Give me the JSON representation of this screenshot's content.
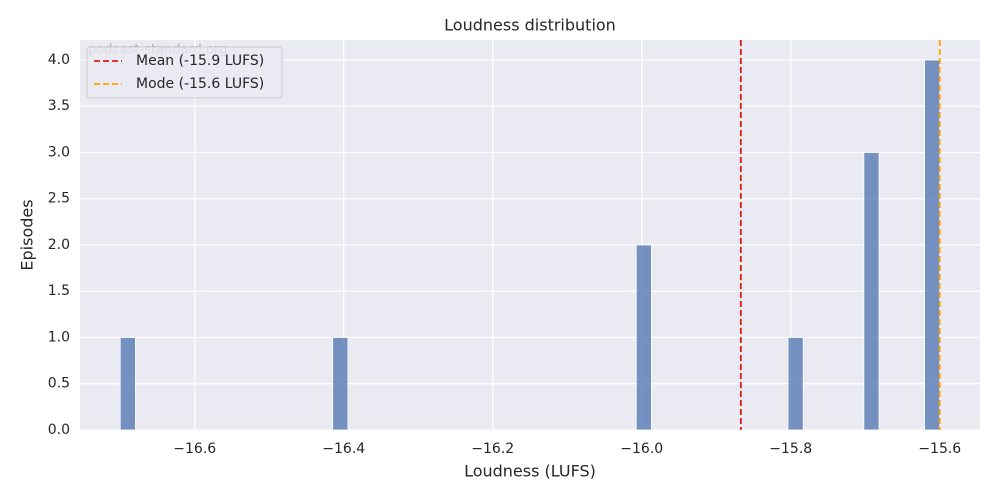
{
  "chart_data": {
    "type": "histogram",
    "title": "Loudness distribution",
    "xlabel": "Loudness (LUFS)",
    "ylabel": "Episodes",
    "watermark": "podcast-standard.org",
    "bins": [
      -16.7,
      -16.6796,
      -16.6593,
      -16.6389,
      -16.6185,
      -16.5981,
      -16.5778,
      -16.5574,
      -16.537,
      -16.5167,
      -16.4963,
      -16.4759,
      -16.4556,
      -16.4352,
      -16.4148,
      -16.3944,
      -16.3741,
      -16.3537,
      -16.3333,
      -16.313,
      -16.2926,
      -16.2722,
      -16.2519,
      -16.2315,
      -16.2111,
      -16.1907,
      -16.1704,
      -16.15,
      -16.1296,
      -16.1093,
      -16.0889,
      -16.0685,
      -16.0481,
      -16.0278,
      -16.0074,
      -15.987,
      -15.9667,
      -15.9463,
      -15.9259,
      -15.9056,
      -15.8852,
      -15.8648,
      -15.8444,
      -15.8241,
      -15.8037,
      -15.7833,
      -15.763,
      -15.7426,
      -15.7222,
      -15.7019,
      -15.6815,
      -15.6611,
      -15.6407,
      -15.6204,
      -15.6
    ],
    "values": [
      1,
      0,
      0,
      0,
      0,
      0,
      0,
      0,
      0,
      0,
      0,
      0,
      0,
      0,
      1,
      0,
      0,
      0,
      0,
      0,
      0,
      0,
      0,
      0,
      0,
      0,
      0,
      0,
      0,
      0,
      0,
      0,
      0,
      0,
      2,
      0,
      0,
      0,
      0,
      0,
      0,
      0,
      0,
      0,
      1,
      0,
      0,
      0,
      0,
      3,
      0,
      0,
      0,
      4
    ],
    "color": "#4c72b0",
    "vlines": [
      {
        "name": "Mean (-15.9 LUFS)",
        "value": -15.867,
        "color": "#e41a1c"
      },
      {
        "name": "Mode (-15.6 LUFS)",
        "value": -15.6,
        "color": "#ffa500"
      }
    ],
    "xlim": [
      -16.754,
      -15.546
    ],
    "xticks": [
      {
        "value": -16.6,
        "label": "−16.6"
      },
      {
        "value": -16.4,
        "label": "−16.4"
      },
      {
        "value": -16.2,
        "label": "−16.2"
      },
      {
        "value": -16.0,
        "label": "−16.0"
      },
      {
        "value": -15.8,
        "label": "−15.8"
      },
      {
        "value": -15.6,
        "label": "−15.6"
      }
    ],
    "ylim": [
      0,
      4.216
    ],
    "yticks": [
      {
        "value": 0,
        "label": "0.0"
      },
      0.5,
      {
        "value": 1,
        "label": "1.0"
      },
      1.5,
      {
        "value": 2,
        "label": "2.0"
      },
      2.5,
      {
        "value": 3,
        "label": "3.0"
      },
      3.5,
      {
        "value": 4,
        "label": "4.0"
      }
    ],
    "grid": true,
    "legend": "upper left"
  }
}
